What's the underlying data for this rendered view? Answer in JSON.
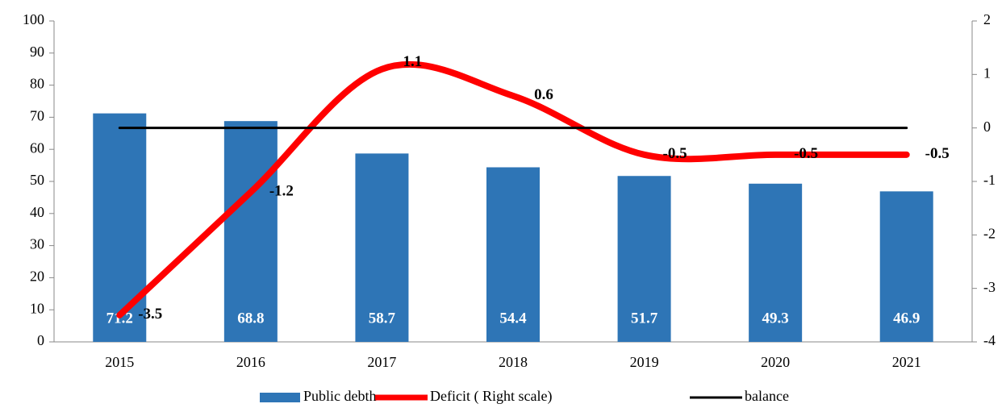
{
  "chart_data": {
    "type": "bar",
    "categories": [
      "2015",
      "2016",
      "2017",
      "2018",
      "2019",
      "2020",
      "2021"
    ],
    "series": [
      {
        "name": "Public debth",
        "type": "bar",
        "color": "#2e75b6",
        "values": [
          71.2,
          68.8,
          58.7,
          54.4,
          51.7,
          49.3,
          46.9
        ]
      },
      {
        "name": "Deficit ( Right scale)",
        "type": "line",
        "axis": "y2",
        "smooth": true,
        "color": "#ff0000",
        "values": [
          -3.5,
          -1.2,
          1.1,
          0.6,
          -0.5,
          -0.5,
          -0.5
        ]
      },
      {
        "name": "balance",
        "type": "line",
        "axis": "y2",
        "color": "#000000",
        "values": [
          0,
          0,
          0,
          0,
          0,
          0,
          0
        ]
      }
    ],
    "ylim": [
      0,
      100
    ],
    "yticks": [
      0,
      10,
      20,
      30,
      40,
      50,
      60,
      70,
      80,
      90,
      100
    ],
    "y2lim": [
      -4,
      2
    ],
    "y2ticks": [
      -4,
      -3,
      -2,
      -1,
      0,
      1,
      2
    ],
    "legend": "bottom"
  }
}
